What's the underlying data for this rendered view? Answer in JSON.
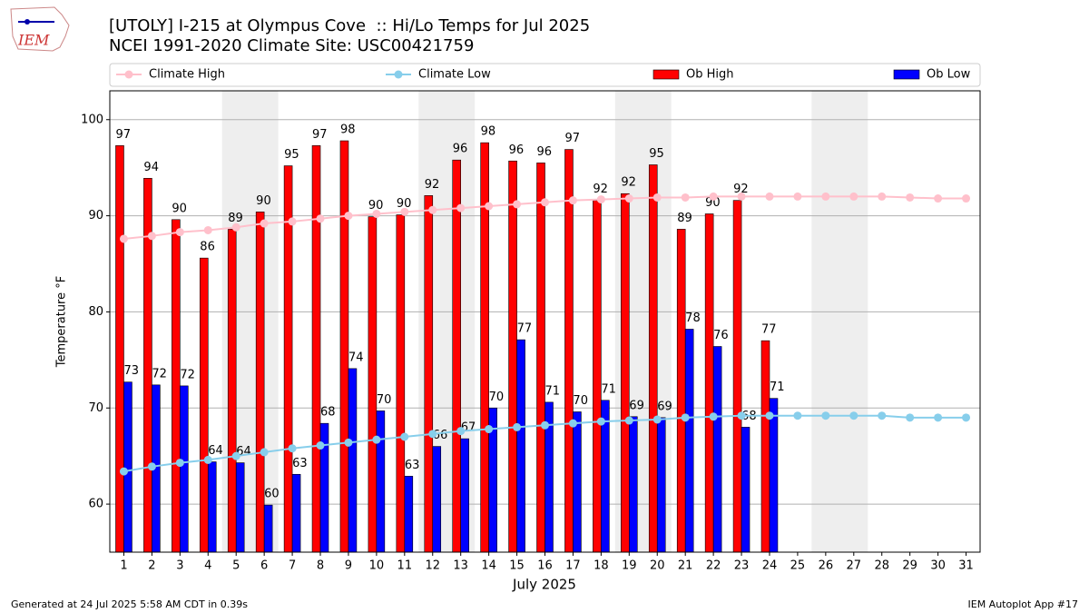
{
  "chart_data": {
    "type": "combo",
    "title": "[UTOLY] I-215 at Olympus Cove  :: Hi/Lo Temps for Jul 2025",
    "subtitle": "NCEI 1991-2020 Climate Site: USC00421759",
    "logo_text": "IEM",
    "x_label": "July 2025",
    "y_label": "Temperature °F",
    "footer_left": "Generated at 24 Jul 2025 5:58 AM CDT in 0.39s",
    "footer_right": "IEM Autoplot App #17",
    "x": [
      1,
      2,
      3,
      4,
      5,
      6,
      7,
      8,
      9,
      10,
      11,
      12,
      13,
      14,
      15,
      16,
      17,
      18,
      19,
      20,
      21,
      22,
      23,
      24,
      25,
      26,
      27,
      28,
      29,
      30,
      31
    ],
    "xlim": [
      0.5,
      31.5
    ],
    "xticks": [
      1,
      2,
      3,
      4,
      5,
      6,
      7,
      8,
      9,
      10,
      11,
      12,
      13,
      14,
      15,
      16,
      17,
      18,
      19,
      20,
      21,
      22,
      23,
      24,
      25,
      26,
      27,
      28,
      29,
      30,
      31
    ],
    "ylim": [
      55,
      103
    ],
    "yticks": [
      60,
      70,
      80,
      90,
      100
    ],
    "grid": true,
    "shaded_ranges": [
      [
        4.5,
        6.5
      ],
      [
        11.5,
        13.5
      ],
      [
        18.5,
        20.5
      ],
      [
        25.5,
        27.5
      ]
    ],
    "shade_color": "#eeeeee",
    "series": [
      {
        "name": "Climate High",
        "type": "line",
        "color": "#ffc0cb",
        "values": [
          87.6,
          87.9,
          88.3,
          88.5,
          88.8,
          89.2,
          89.4,
          89.7,
          90.0,
          90.2,
          90.4,
          90.6,
          90.8,
          91.0,
          91.2,
          91.4,
          91.6,
          91.7,
          91.8,
          91.9,
          91.9,
          92.0,
          92.0,
          92.0,
          92.0,
          92.0,
          92.0,
          92.0,
          91.9,
          91.8,
          91.8
        ]
      },
      {
        "name": "Climate Low",
        "type": "line",
        "color": "#87ceeb",
        "values": [
          63.4,
          63.9,
          64.3,
          64.6,
          65.0,
          65.4,
          65.8,
          66.1,
          66.4,
          66.7,
          67.0,
          67.3,
          67.6,
          67.8,
          68.0,
          68.2,
          68.4,
          68.6,
          68.7,
          68.8,
          69.0,
          69.1,
          69.2,
          69.2,
          69.2,
          69.2,
          69.2,
          69.2,
          69.0,
          69.0,
          69.0
        ]
      },
      {
        "name": "Ob High",
        "type": "bar",
        "color": "#ff0000",
        "offset": -1,
        "values": [
          97.3,
          93.9,
          89.6,
          85.6,
          88.6,
          90.4,
          95.2,
          97.3,
          97.8,
          89.9,
          90.1,
          92.1,
          95.8,
          97.6,
          95.7,
          95.5,
          96.9,
          91.6,
          92.3,
          95.3,
          88.6,
          90.2,
          91.6,
          77.0,
          null,
          null,
          null,
          null,
          null,
          null,
          null
        ],
        "value_labels": [
          "97",
          "94",
          "90",
          "86",
          "89",
          "90",
          "95",
          "97",
          "98",
          "90",
          "90",
          "92",
          "96",
          "98",
          "96",
          "96",
          "97",
          "92",
          "92",
          "95",
          "89",
          "90",
          "92",
          "77",
          null,
          null,
          null,
          null,
          null,
          null,
          null
        ]
      },
      {
        "name": "Ob Low",
        "type": "bar",
        "color": "#0000ff",
        "offset": 1,
        "values": [
          72.7,
          72.4,
          72.3,
          64.4,
          64.3,
          59.9,
          63.1,
          68.4,
          74.1,
          69.7,
          62.9,
          66.0,
          66.8,
          70.0,
          77.1,
          70.6,
          69.6,
          70.8,
          69.1,
          69.0,
          78.2,
          76.4,
          68.0,
          71.0,
          null,
          null,
          null,
          null,
          null,
          null,
          null
        ],
        "value_labels": [
          "73",
          "72",
          "72",
          "64",
          "64",
          "60",
          "63",
          "68",
          "74",
          "70",
          "63",
          "66",
          "67",
          "70",
          "77",
          "71",
          "70",
          "71",
          "69",
          "69",
          "78",
          "76",
          "68",
          "71",
          null,
          null,
          null,
          null,
          null,
          null,
          null
        ]
      }
    ]
  }
}
